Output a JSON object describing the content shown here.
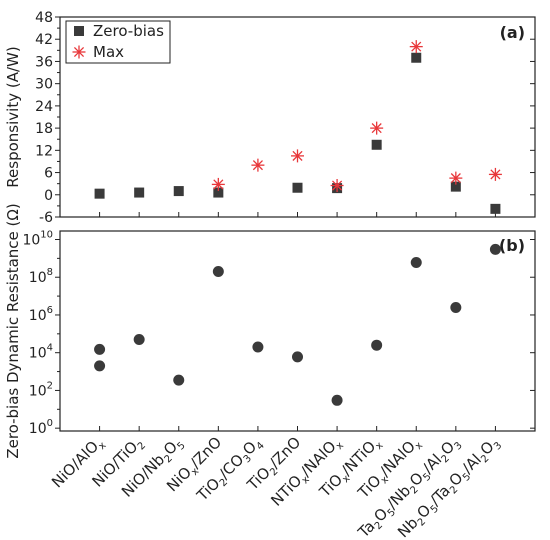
{
  "chart_data": [
    {
      "type": "scatter",
      "panel_label": "(a)",
      "ylabel": "Responsivity (A/W)",
      "ylim": [
        -6,
        48
      ],
      "yticks": [
        "-6",
        "0",
        "6",
        "12",
        "18",
        "24",
        "30",
        "36",
        "42",
        "48"
      ],
      "legend_position": "top-left",
      "categories": [
        "NiO/AlOx",
        "NiO/TiO2",
        "NiO/Nb2O5",
        "NiOx/ZnO",
        "TiO2/CO3O4",
        "TiO2/ZnO",
        "NTiOx/NAlOx",
        "TiOx/NTiOx",
        "TiOx/NAlOx",
        "Ta2O5/Nb2O5/Al2O3",
        "Nb2O5/Ta2O5/Al2O3"
      ],
      "series": [
        {
          "name": "Zero-bias",
          "marker": "square",
          "color": "#3a3a3a",
          "values": [
            0.3,
            0.6,
            1.0,
            0.6,
            null,
            1.9,
            1.8,
            13.5,
            37.0,
            2.2,
            -3.8
          ]
        },
        {
          "name": "Max",
          "marker": "asterisk",
          "color": "#e8373a",
          "values": [
            null,
            null,
            null,
            2.8,
            8.0,
            10.5,
            2.5,
            18.0,
            40.0,
            4.5,
            5.5
          ]
        }
      ]
    },
    {
      "type": "scatter",
      "panel_label": "(b)",
      "ylabel": "Zero-bias Dynamic Resistance (Ω)",
      "yscale": "log",
      "ylim": [
        1,
        10000000000
      ],
      "yticks": [
        {
          "base": "10",
          "exp": "0"
        },
        {
          "base": "10",
          "exp": "2"
        },
        {
          "base": "10",
          "exp": "4"
        },
        {
          "base": "10",
          "exp": "6"
        },
        {
          "base": "10",
          "exp": "8"
        },
        {
          "base": "10",
          "exp": "10"
        }
      ],
      "points": [
        {
          "category": "NiO/AlOx",
          "value": 15000
        },
        {
          "category": "NiO/AlOx",
          "value": 2000
        },
        {
          "category": "NiO/TiO2",
          "value": 50000
        },
        {
          "category": "NiO/Nb2O5",
          "value": 350
        },
        {
          "category": "NiOx/ZnO",
          "value": 200000000
        },
        {
          "category": "TiO2/CO3O4",
          "value": 20000
        },
        {
          "category": "TiO2/ZnO",
          "value": 6000
        },
        {
          "category": "NTiOx/NAlOx",
          "value": 30
        },
        {
          "category": "TiOx/NTiOx",
          "value": 25000
        },
        {
          "category": "TiOx/NAlOx",
          "value": 600000000
        },
        {
          "category": "Ta2O5/Nb2O5/Al2O3",
          "value": 2500000
        },
        {
          "category": "Nb2O5/Ta2O5/Al2O3",
          "value": 3000000000
        }
      ]
    }
  ],
  "x_tick_labels": [
    [
      {
        "t": "NiO/AlO"
      },
      {
        "t": "x",
        "s": "sub"
      }
    ],
    [
      {
        "t": "NiO/TiO"
      },
      {
        "t": "2",
        "s": "sub"
      }
    ],
    [
      {
        "t": "NiO/Nb"
      },
      {
        "t": "2",
        "s": "sub"
      },
      {
        "t": "O"
      },
      {
        "t": "5",
        "s": "sub"
      }
    ],
    [
      {
        "t": "NiO"
      },
      {
        "t": "x",
        "s": "sub"
      },
      {
        "t": "/ZnO"
      }
    ],
    [
      {
        "t": "TiO"
      },
      {
        "t": "2",
        "s": "sub"
      },
      {
        "t": "/CO"
      },
      {
        "t": "3",
        "s": "sub"
      },
      {
        "t": "O"
      },
      {
        "t": "4",
        "s": "sub"
      }
    ],
    [
      {
        "t": "TiO"
      },
      {
        "t": "2",
        "s": "sub"
      },
      {
        "t": "/ZnO"
      }
    ],
    [
      {
        "t": "NTiO"
      },
      {
        "t": "x",
        "s": "sub"
      },
      {
        "t": "/NAlO"
      },
      {
        "t": "x",
        "s": "sub"
      }
    ],
    [
      {
        "t": "TiO"
      },
      {
        "t": "x",
        "s": "sub"
      },
      {
        "t": "/NTiO"
      },
      {
        "t": "x",
        "s": "sub"
      }
    ],
    [
      {
        "t": "TiO"
      },
      {
        "t": "x",
        "s": "sub"
      },
      {
        "t": "/NAlO"
      },
      {
        "t": "x",
        "s": "sub"
      }
    ],
    [
      {
        "t": "Ta"
      },
      {
        "t": "2",
        "s": "sub"
      },
      {
        "t": "O"
      },
      {
        "t": "5",
        "s": "sub"
      },
      {
        "t": "/Nb"
      },
      {
        "t": "2",
        "s": "sub"
      },
      {
        "t": "O"
      },
      {
        "t": "5",
        "s": "sub"
      },
      {
        "t": "/Al"
      },
      {
        "t": "2",
        "s": "sub"
      },
      {
        "t": "O"
      },
      {
        "t": "3",
        "s": "sub"
      }
    ],
    [
      {
        "t": "Nb"
      },
      {
        "t": "2",
        "s": "sub"
      },
      {
        "t": "O"
      },
      {
        "t": "5",
        "s": "sub"
      },
      {
        "t": "/Ta"
      },
      {
        "t": "2",
        "s": "sub"
      },
      {
        "t": "O"
      },
      {
        "t": "5",
        "s": "sub"
      },
      {
        "t": "/Al"
      },
      {
        "t": "2",
        "s": "sub"
      },
      {
        "t": "O"
      },
      {
        "t": "3",
        "s": "sub"
      }
    ]
  ]
}
